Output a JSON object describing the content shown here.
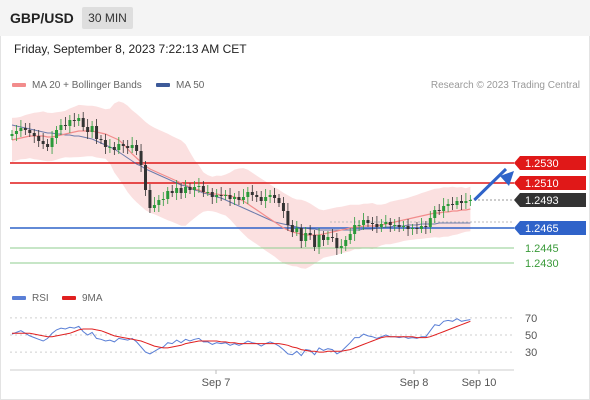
{
  "header": {
    "pair": "GBP/USD",
    "timeframe": "30 MIN"
  },
  "datetime": "Friday, September 8, 2023 7:22:13 AM CET",
  "legend": {
    "ma20": {
      "label": "MA 20 + Bollinger Bands",
      "color": "#f28c8c"
    },
    "ma50": {
      "label": "MA 50",
      "color": "#3d5a99"
    },
    "credit": "Research © 2023 Trading Central"
  },
  "rsi_legend": {
    "rsi": {
      "label": "RSI",
      "color": "#5a7fd6"
    },
    "ma9": {
      "label": "9MA",
      "color": "#e02020"
    }
  },
  "colors": {
    "up": "#2b9a3a",
    "down": "#333333",
    "resistance": "#e01818",
    "pivot": "#2f63c9",
    "support": "#8fce8f",
    "band": "#fadada"
  },
  "chart_data": [
    {
      "type": "candlestick",
      "title": "GBP/USD",
      "timeframe": "30 MIN",
      "x_labels": [
        "Sep 7",
        "Sep 8",
        "Sep 10"
      ],
      "ylim": [
        1.2418,
        1.2588
      ],
      "levels": [
        {
          "value": 1.253,
          "label": "1.2530",
          "kind": "resistance"
        },
        {
          "value": 1.251,
          "label": "1.2510",
          "kind": "resistance"
        },
        {
          "value": 1.2493,
          "label": "1.2493",
          "kind": "last"
        },
        {
          "value": 1.2465,
          "label": "1.2465",
          "kind": "pivot"
        },
        {
          "value": 1.2445,
          "label": "1.2445",
          "kind": "support"
        },
        {
          "value": 1.243,
          "label": "1.2430",
          "kind": "support"
        }
      ],
      "close": [
        1.2559,
        1.2562,
        1.2565,
        1.2563,
        1.256,
        1.2557,
        1.2552,
        1.2549,
        1.2546,
        1.2555,
        1.2563,
        1.2568,
        1.2567,
        1.2573,
        1.2572,
        1.2575,
        1.2566,
        1.2561,
        1.2567,
        1.2554,
        1.2553,
        1.2546,
        1.2546,
        1.2543,
        1.2549,
        1.2547,
        1.2545,
        1.2548,
        1.2542,
        1.2528,
        1.2503,
        1.2485,
        1.2488,
        1.2493,
        1.2494,
        1.2502,
        1.25,
        1.2505,
        1.25,
        1.2506,
        1.2503,
        1.2506,
        1.2507,
        1.2501,
        1.2501,
        1.2496,
        1.2498,
        1.2497,
        1.2498,
        1.2494,
        1.2496,
        1.2493,
        1.2496,
        1.2501,
        1.2498,
        1.2496,
        1.2492,
        1.2496,
        1.2498,
        1.2495,
        1.249,
        1.2482,
        1.2468,
        1.2461,
        1.2465,
        1.2452,
        1.246,
        1.2458,
        1.2446,
        1.2458,
        1.2453,
        1.2456,
        1.2455,
        1.2445,
        1.2447,
        1.2453,
        1.2459,
        1.2468,
        1.2468,
        1.2473,
        1.247,
        1.2469,
        1.2466,
        1.2469,
        1.2471,
        1.2468,
        1.2468,
        1.2466,
        1.2467,
        1.2464,
        1.2465,
        1.2464,
        1.2467,
        1.2466,
        1.2475,
        1.2483,
        1.2482,
        1.2487,
        1.2489,
        1.2488,
        1.2492,
        1.249,
        1.2492,
        1.2493
      ],
      "ma20": [
        1.2553,
        1.2554,
        1.2555,
        1.2556,
        1.2557,
        1.2557,
        1.2557,
        1.2557,
        1.2556,
        1.2556,
        1.2557,
        1.2558,
        1.2559,
        1.256,
        1.2561,
        1.2562,
        1.2562,
        1.2562,
        1.2562,
        1.2561,
        1.256,
        1.2559,
        1.2557,
        1.2555,
        1.2553,
        1.2549,
        1.2544,
        1.2539,
        1.2535,
        1.2531,
        1.2527,
        1.2524,
        1.2522,
        1.252,
        1.2518,
        1.2516,
        1.2514,
        1.2512,
        1.251,
        1.2508,
        1.2506,
        1.2504,
        1.2503,
        1.2501,
        1.25,
        1.2499,
        1.2499,
        1.2498,
        1.2498,
        1.2497,
        1.2496,
        1.2494,
        1.2492,
        1.2489,
        1.2486,
        1.2483,
        1.248,
        1.2477,
        1.2474,
        1.2471,
        1.2468,
        1.2465,
        1.2463,
        1.2461,
        1.246,
        1.2459,
        1.2458,
        1.2458,
        1.2458,
        1.2458,
        1.2459,
        1.246,
        1.2461,
        1.2462,
        1.2463,
        1.2464,
        1.2465,
        1.2466,
        1.2466,
        1.2467,
        1.2467,
        1.2467,
        1.2467,
        1.2468,
        1.2469,
        1.247,
        1.2471,
        1.2472,
        1.2473,
        1.2474,
        1.2475,
        1.2476,
        1.2477,
        1.2478,
        1.2479,
        1.248,
        1.248,
        1.2481,
        1.2481,
        1.2482,
        1.2482,
        1.2483,
        1.2483,
        1.2484
      ],
      "ma50": [
        1.2568,
        1.2567,
        1.2566,
        1.2565,
        1.2564,
        1.2563,
        1.2562,
        1.2561,
        1.256,
        1.256,
        1.2559,
        1.2559,
        1.2558,
        1.2558,
        1.2557,
        1.2557,
        1.2556,
        1.2555,
        1.2554,
        1.2552,
        1.255,
        1.2548,
        1.2546,
        1.2544,
        1.2541,
        1.2538,
        1.2535,
        1.2532,
        1.2529,
        1.2527,
        1.2524,
        1.2522,
        1.252,
        1.2518,
        1.2516,
        1.2514,
        1.2512,
        1.251,
        1.2508,
        1.2507,
        1.2505,
        1.2503,
        1.2502,
        1.25,
        1.2499,
        1.2498,
        1.2496,
        1.2495,
        1.2493,
        1.2491,
        1.2489,
        1.2487,
        1.2485,
        1.2483,
        1.2481,
        1.2479,
        1.2477,
        1.2475,
        1.2473,
        1.2471,
        1.247,
        1.2469,
        1.2468,
        1.2467,
        1.2466,
        1.2465,
        1.2465,
        1.2464,
        1.2464,
        1.2463,
        1.2463,
        1.2463,
        1.2463,
        1.2463,
        1.2463,
        1.2463,
        1.2463,
        1.2463,
        1.2463,
        1.2464,
        1.2464,
        1.2464,
        1.2465,
        1.2465,
        1.2466,
        1.2466,
        1.2467,
        1.2467,
        1.2467,
        1.2468,
        1.2468,
        1.2468,
        1.2469,
        1.2469,
        1.2469,
        1.2469,
        1.247,
        1.247,
        1.247,
        1.247,
        1.247,
        1.247,
        1.247,
        1.247
      ]
    },
    {
      "type": "line",
      "title": "RSI",
      "yticks": [
        70,
        50,
        30
      ],
      "ylim": [
        15,
        85
      ],
      "series": [
        {
          "name": "RSI",
          "values": [
            51,
            53,
            55,
            52,
            49,
            47,
            45,
            43,
            46,
            52,
            56,
            58,
            57,
            59,
            58,
            60,
            54,
            50,
            53,
            46,
            45,
            43,
            44,
            42,
            46,
            45,
            44,
            46,
            42,
            36,
            30,
            28,
            31,
            34,
            36,
            41,
            40,
            44,
            41,
            45,
            43,
            45,
            46,
            42,
            42,
            39,
            41,
            40,
            41,
            38,
            40,
            38,
            40,
            43,
            41,
            40,
            37,
            40,
            42,
            40,
            37,
            33,
            28,
            27,
            31,
            26,
            33,
            32,
            27,
            35,
            32,
            34,
            33,
            28,
            31,
            36,
            41,
            47,
            47,
            51,
            49,
            48,
            46,
            48,
            50,
            48,
            48,
            47,
            48,
            46,
            47,
            46,
            48,
            48,
            55,
            62,
            61,
            66,
            67,
            66,
            69,
            66,
            67,
            68
          ]
        },
        {
          "name": "9MA",
          "values": [
            52,
            52,
            52,
            52,
            52,
            51,
            50,
            49,
            48,
            48,
            49,
            50,
            51,
            52,
            54,
            56,
            57,
            57,
            57,
            56,
            55,
            53,
            51,
            49,
            48,
            47,
            46,
            45,
            44,
            43,
            41,
            39,
            37,
            36,
            35,
            35,
            36,
            37,
            38,
            40,
            41,
            42,
            43,
            43,
            43,
            43,
            43,
            42,
            42,
            41,
            41,
            40,
            40,
            40,
            40,
            40,
            40,
            40,
            40,
            40,
            40,
            39,
            38,
            36,
            35,
            33,
            32,
            31,
            31,
            30,
            30,
            31,
            31,
            31,
            31,
            32,
            33,
            35,
            37,
            39,
            41,
            43,
            45,
            47,
            48,
            48,
            48,
            48,
            48,
            48,
            48,
            47,
            47,
            47,
            48,
            50,
            52,
            54,
            56,
            58,
            60,
            62,
            64,
            66
          ]
        }
      ]
    }
  ]
}
